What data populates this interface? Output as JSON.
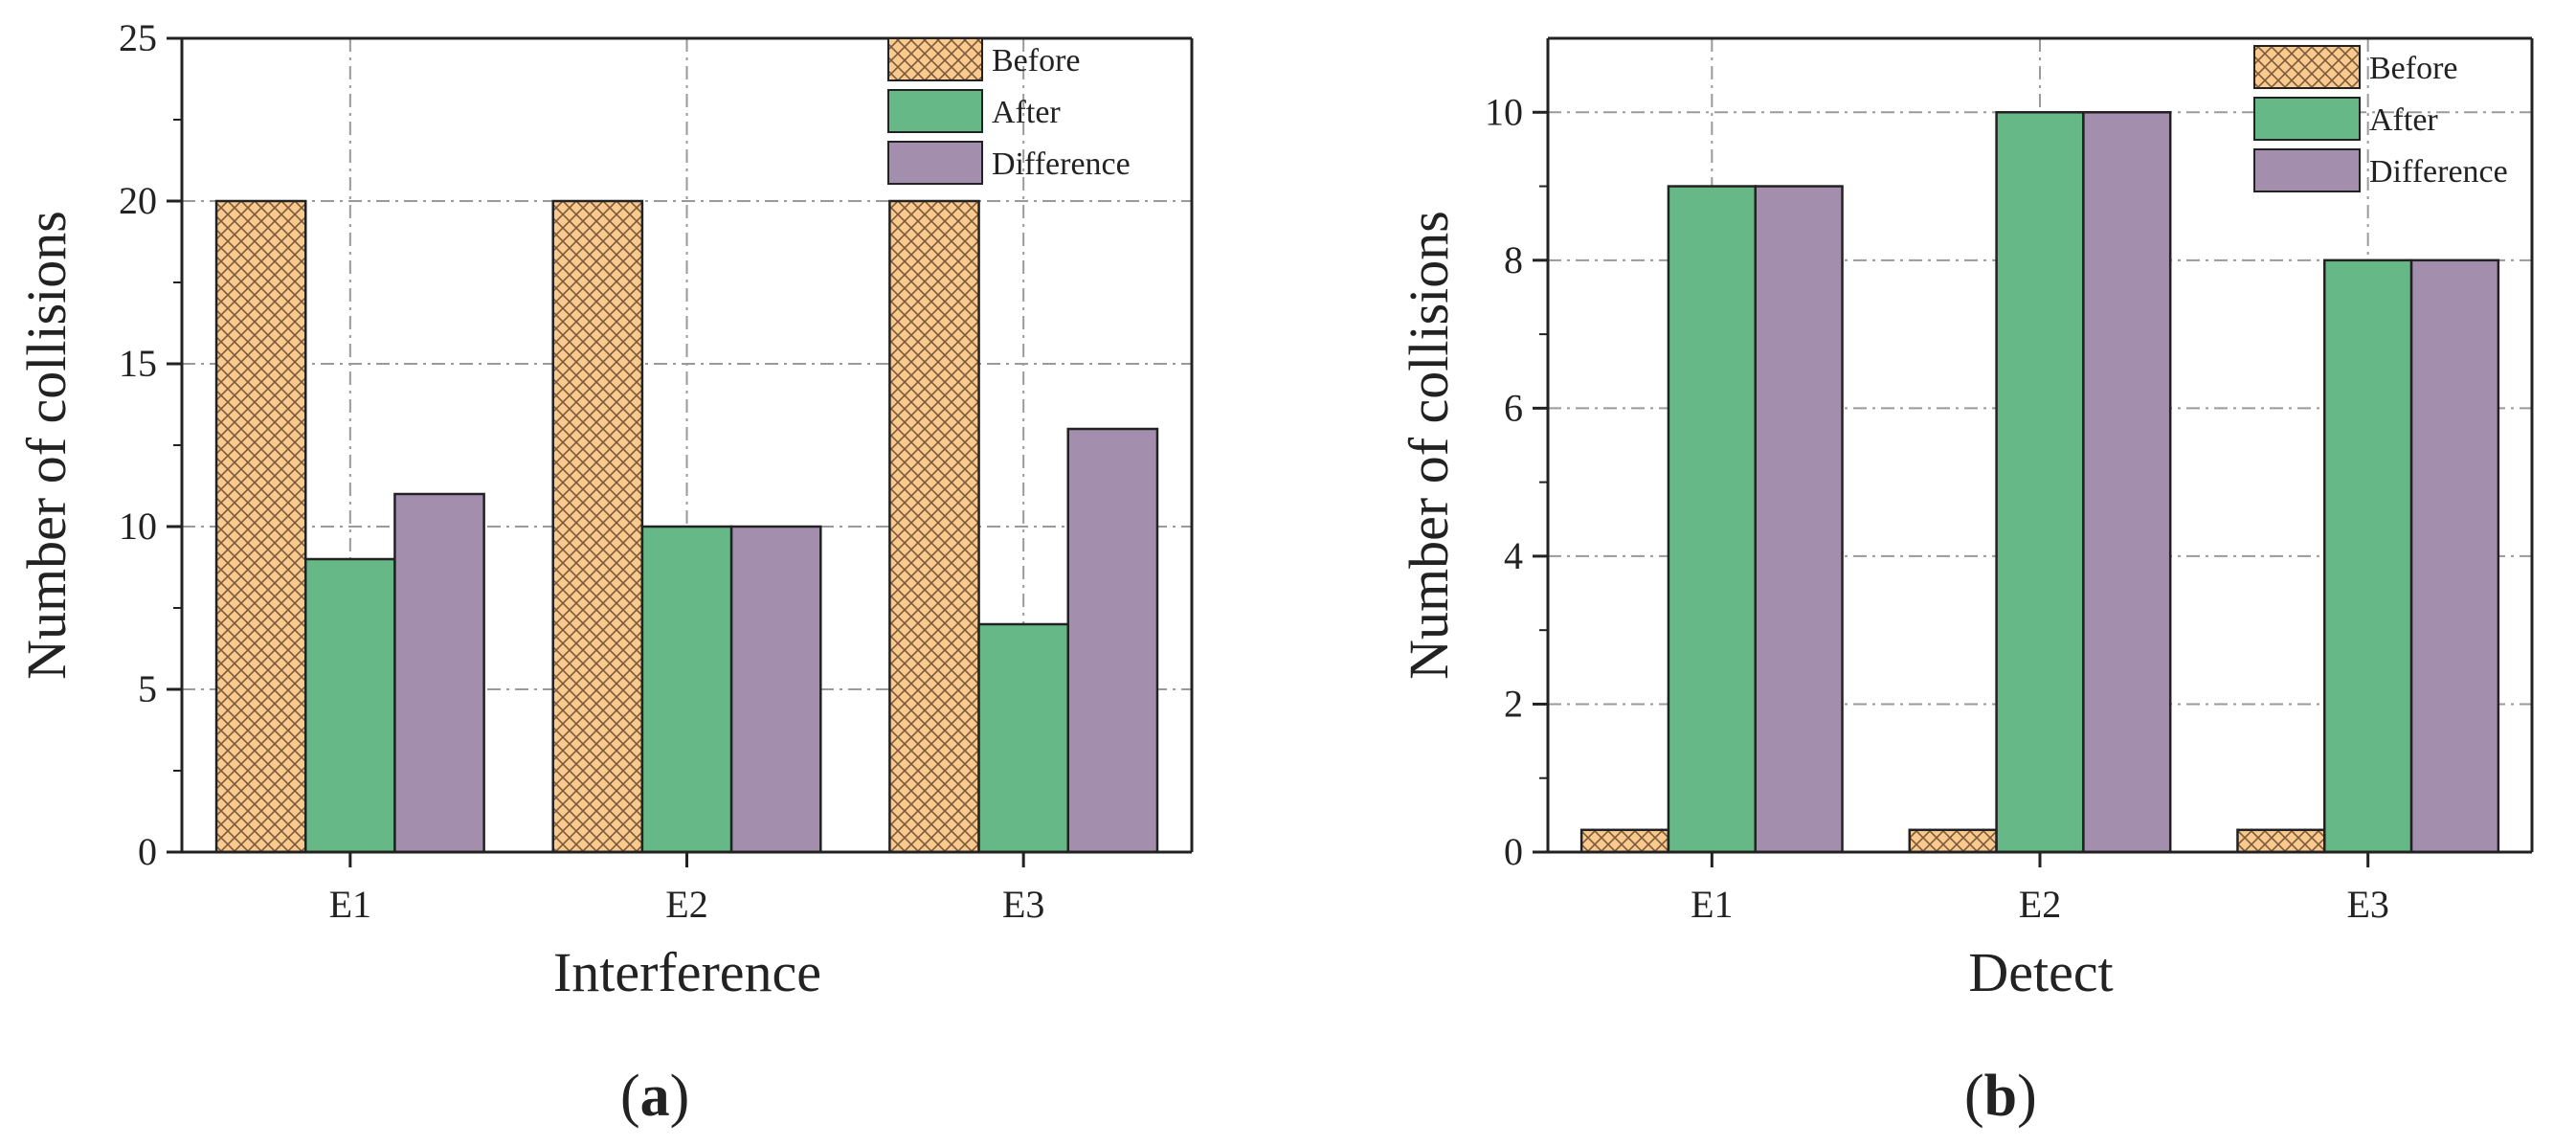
{
  "chart_data": [
    {
      "type": "bar",
      "panel_label": "a",
      "categories": [
        "E1",
        "E2",
        "E3"
      ],
      "series": [
        {
          "name": "Before",
          "values": [
            20,
            20,
            20
          ],
          "color": "#F9C98E",
          "pattern": "crosshatch"
        },
        {
          "name": "After",
          "values": [
            9,
            10,
            7
          ],
          "color": "#66B987"
        },
        {
          "name": "Difference",
          "values": [
            11,
            10,
            13
          ],
          "color": "#A48EAD"
        }
      ],
      "xlabel": "Interference",
      "ylabel": "Number of collisions",
      "ylim": [
        0,
        25
      ],
      "yticks": [
        0,
        5,
        10,
        15,
        20,
        25
      ],
      "grid": true,
      "legend_position": "top-right"
    },
    {
      "type": "bar",
      "panel_label": "b",
      "categories": [
        "E1",
        "E2",
        "E3"
      ],
      "series": [
        {
          "name": "Before",
          "values": [
            0.3,
            0.3,
            0.3
          ],
          "color": "#F9C98E",
          "pattern": "crosshatch"
        },
        {
          "name": "After",
          "values": [
            9,
            10,
            8
          ],
          "color": "#66B987"
        },
        {
          "name": "Difference",
          "values": [
            9,
            10,
            8
          ],
          "color": "#A48EAD"
        }
      ],
      "xlabel": "Detect",
      "ylabel": "Number of collisions",
      "ylim": [
        0,
        11
      ],
      "yticks": [
        0,
        2,
        4,
        6,
        8,
        10
      ],
      "grid": true,
      "legend_position": "top-right"
    }
  ]
}
